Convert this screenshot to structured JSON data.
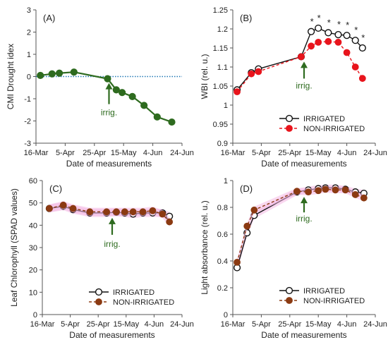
{
  "colors": {
    "green_series": "#2e6b1f",
    "zero_line": "#1f77b4",
    "red_series": "#e8141c",
    "brown_series": "#8b3a12",
    "arrow": "#2e6b1f",
    "band": "#f4b8e4"
  },
  "chart_data": [
    {
      "type": "line",
      "panel": "(A)",
      "xlabel": "Date of measurements",
      "ylabel": "CMI Drought idex",
      "ylim": [
        -3,
        3
      ],
      "yticks": [
        -3,
        -2,
        -1,
        0,
        1,
        2,
        3
      ],
      "xticks": [
        "16-Mar",
        "5-Apr",
        "25-Apr",
        "15-May",
        "4-Jun",
        "24-Jun"
      ],
      "xrange": [
        0,
        100
      ],
      "grid": false,
      "reference_line_y": 0,
      "annotation": "irrig.",
      "annotation_x": 50,
      "series": [
        {
          "x": [
            3,
            11,
            16,
            26,
            49,
            55,
            59,
            66,
            74,
            83,
            93
          ],
          "y": [
            0.05,
            0.12,
            0.15,
            0.2,
            -0.1,
            -0.6,
            -0.72,
            -0.9,
            -1.3,
            -1.82,
            -2.05
          ]
        }
      ]
    },
    {
      "type": "line",
      "panel": "(B)",
      "xlabel": "Date of measurements",
      "ylabel": "WBI (rel. u.)",
      "ylim": [
        0.9,
        1.25
      ],
      "yticks": [
        0.9,
        0.95,
        1,
        1.05,
        1.1,
        1.15,
        1.2,
        1.25
      ],
      "xticks": [
        "16-Mar",
        "5-Apr",
        "25-Apr",
        "15-May",
        "4-Jun",
        "24-Jun"
      ],
      "xrange": [
        0,
        100
      ],
      "grid": false,
      "legend_position": "bottom-right",
      "annotation": "irrig.",
      "annotation_x": 50,
      "significance_marker": "*",
      "series": [
        {
          "name": "IRRIGATED",
          "x": [
            3,
            13,
            18,
            48,
            55,
            60,
            67,
            74,
            80,
            86,
            91
          ],
          "y": [
            1.04,
            1.085,
            1.095,
            1.127,
            1.193,
            1.202,
            1.19,
            1.185,
            1.183,
            1.17,
            1.15
          ],
          "significant": [
            false,
            false,
            false,
            false,
            true,
            true,
            true,
            true,
            true,
            true,
            true
          ]
        },
        {
          "name": "NON-IRRIGATED",
          "x": [
            3,
            13,
            18,
            48,
            55,
            60,
            67,
            74,
            80,
            86,
            91
          ],
          "y": [
            1.035,
            1.082,
            1.088,
            1.127,
            1.155,
            1.165,
            1.167,
            1.165,
            1.138,
            1.1,
            1.07
          ]
        }
      ]
    },
    {
      "type": "line",
      "panel": "(C)",
      "xlabel": "Date of measurements",
      "ylabel": "Leaf Chlorophyll (SPAD values)",
      "ylim": [
        0,
        60
      ],
      "yticks": [
        0,
        10,
        20,
        30,
        40,
        50,
        60
      ],
      "xticks": [
        "16-Mar",
        "5-Apr",
        "25-Apr",
        "15-May",
        "4-Jun",
        "24-Jun"
      ],
      "xrange": [
        0,
        100
      ],
      "grid": false,
      "legend_position": "bottom-right",
      "annotation": "irrig.",
      "annotation_x": 50,
      "series": [
        {
          "name": "IRRIGATED",
          "x": [
            5,
            15,
            22,
            34,
            46,
            53,
            59,
            65,
            72,
            79,
            86,
            91
          ],
          "y": [
            47.5,
            48.5,
            47,
            45.5,
            45.5,
            45.8,
            45.5,
            45,
            45.5,
            45.5,
            45.5,
            44
          ],
          "band": 1.8
        },
        {
          "name": "NON-IRRIGATED",
          "x": [
            5,
            15,
            22,
            34,
            46,
            53,
            59,
            65,
            72,
            79,
            86,
            91
          ],
          "y": [
            47.5,
            49,
            47.5,
            46,
            46,
            46,
            46,
            46,
            46,
            46.5,
            45,
            41.5
          ],
          "band": 1.8
        }
      ]
    },
    {
      "type": "line",
      "panel": "(D)",
      "xlabel": "Date of measurements",
      "ylabel": "Light absorbance (rel. u.)",
      "ylim": [
        0,
        1
      ],
      "yticks": [
        0,
        0.2,
        0.4,
        0.6,
        0.8,
        1
      ],
      "xticks": [
        "16-Mar",
        "5-Apr",
        "25-Apr",
        "15-May",
        "4-Jun",
        "24-Jun"
      ],
      "xrange": [
        0,
        100
      ],
      "grid": false,
      "legend_position": "bottom-right",
      "annotation": "irrig.",
      "annotation_x": 50,
      "series": [
        {
          "name": "IRRIGATED",
          "x": [
            3,
            10,
            15,
            45,
            53,
            60,
            65,
            72,
            79,
            86,
            92
          ],
          "y": [
            0.35,
            0.61,
            0.74,
            0.915,
            0.93,
            0.94,
            0.945,
            0.945,
            0.935,
            0.915,
            0.905
          ],
          "band": 0.025
        },
        {
          "name": "NON-IRRIGATED",
          "x": [
            3,
            10,
            15,
            45,
            53,
            60,
            65,
            72,
            79,
            86,
            92
          ],
          "y": [
            0.39,
            0.66,
            0.78,
            0.92,
            0.915,
            0.925,
            0.935,
            0.93,
            0.93,
            0.895,
            0.87
          ],
          "band": 0.025
        }
      ]
    }
  ]
}
